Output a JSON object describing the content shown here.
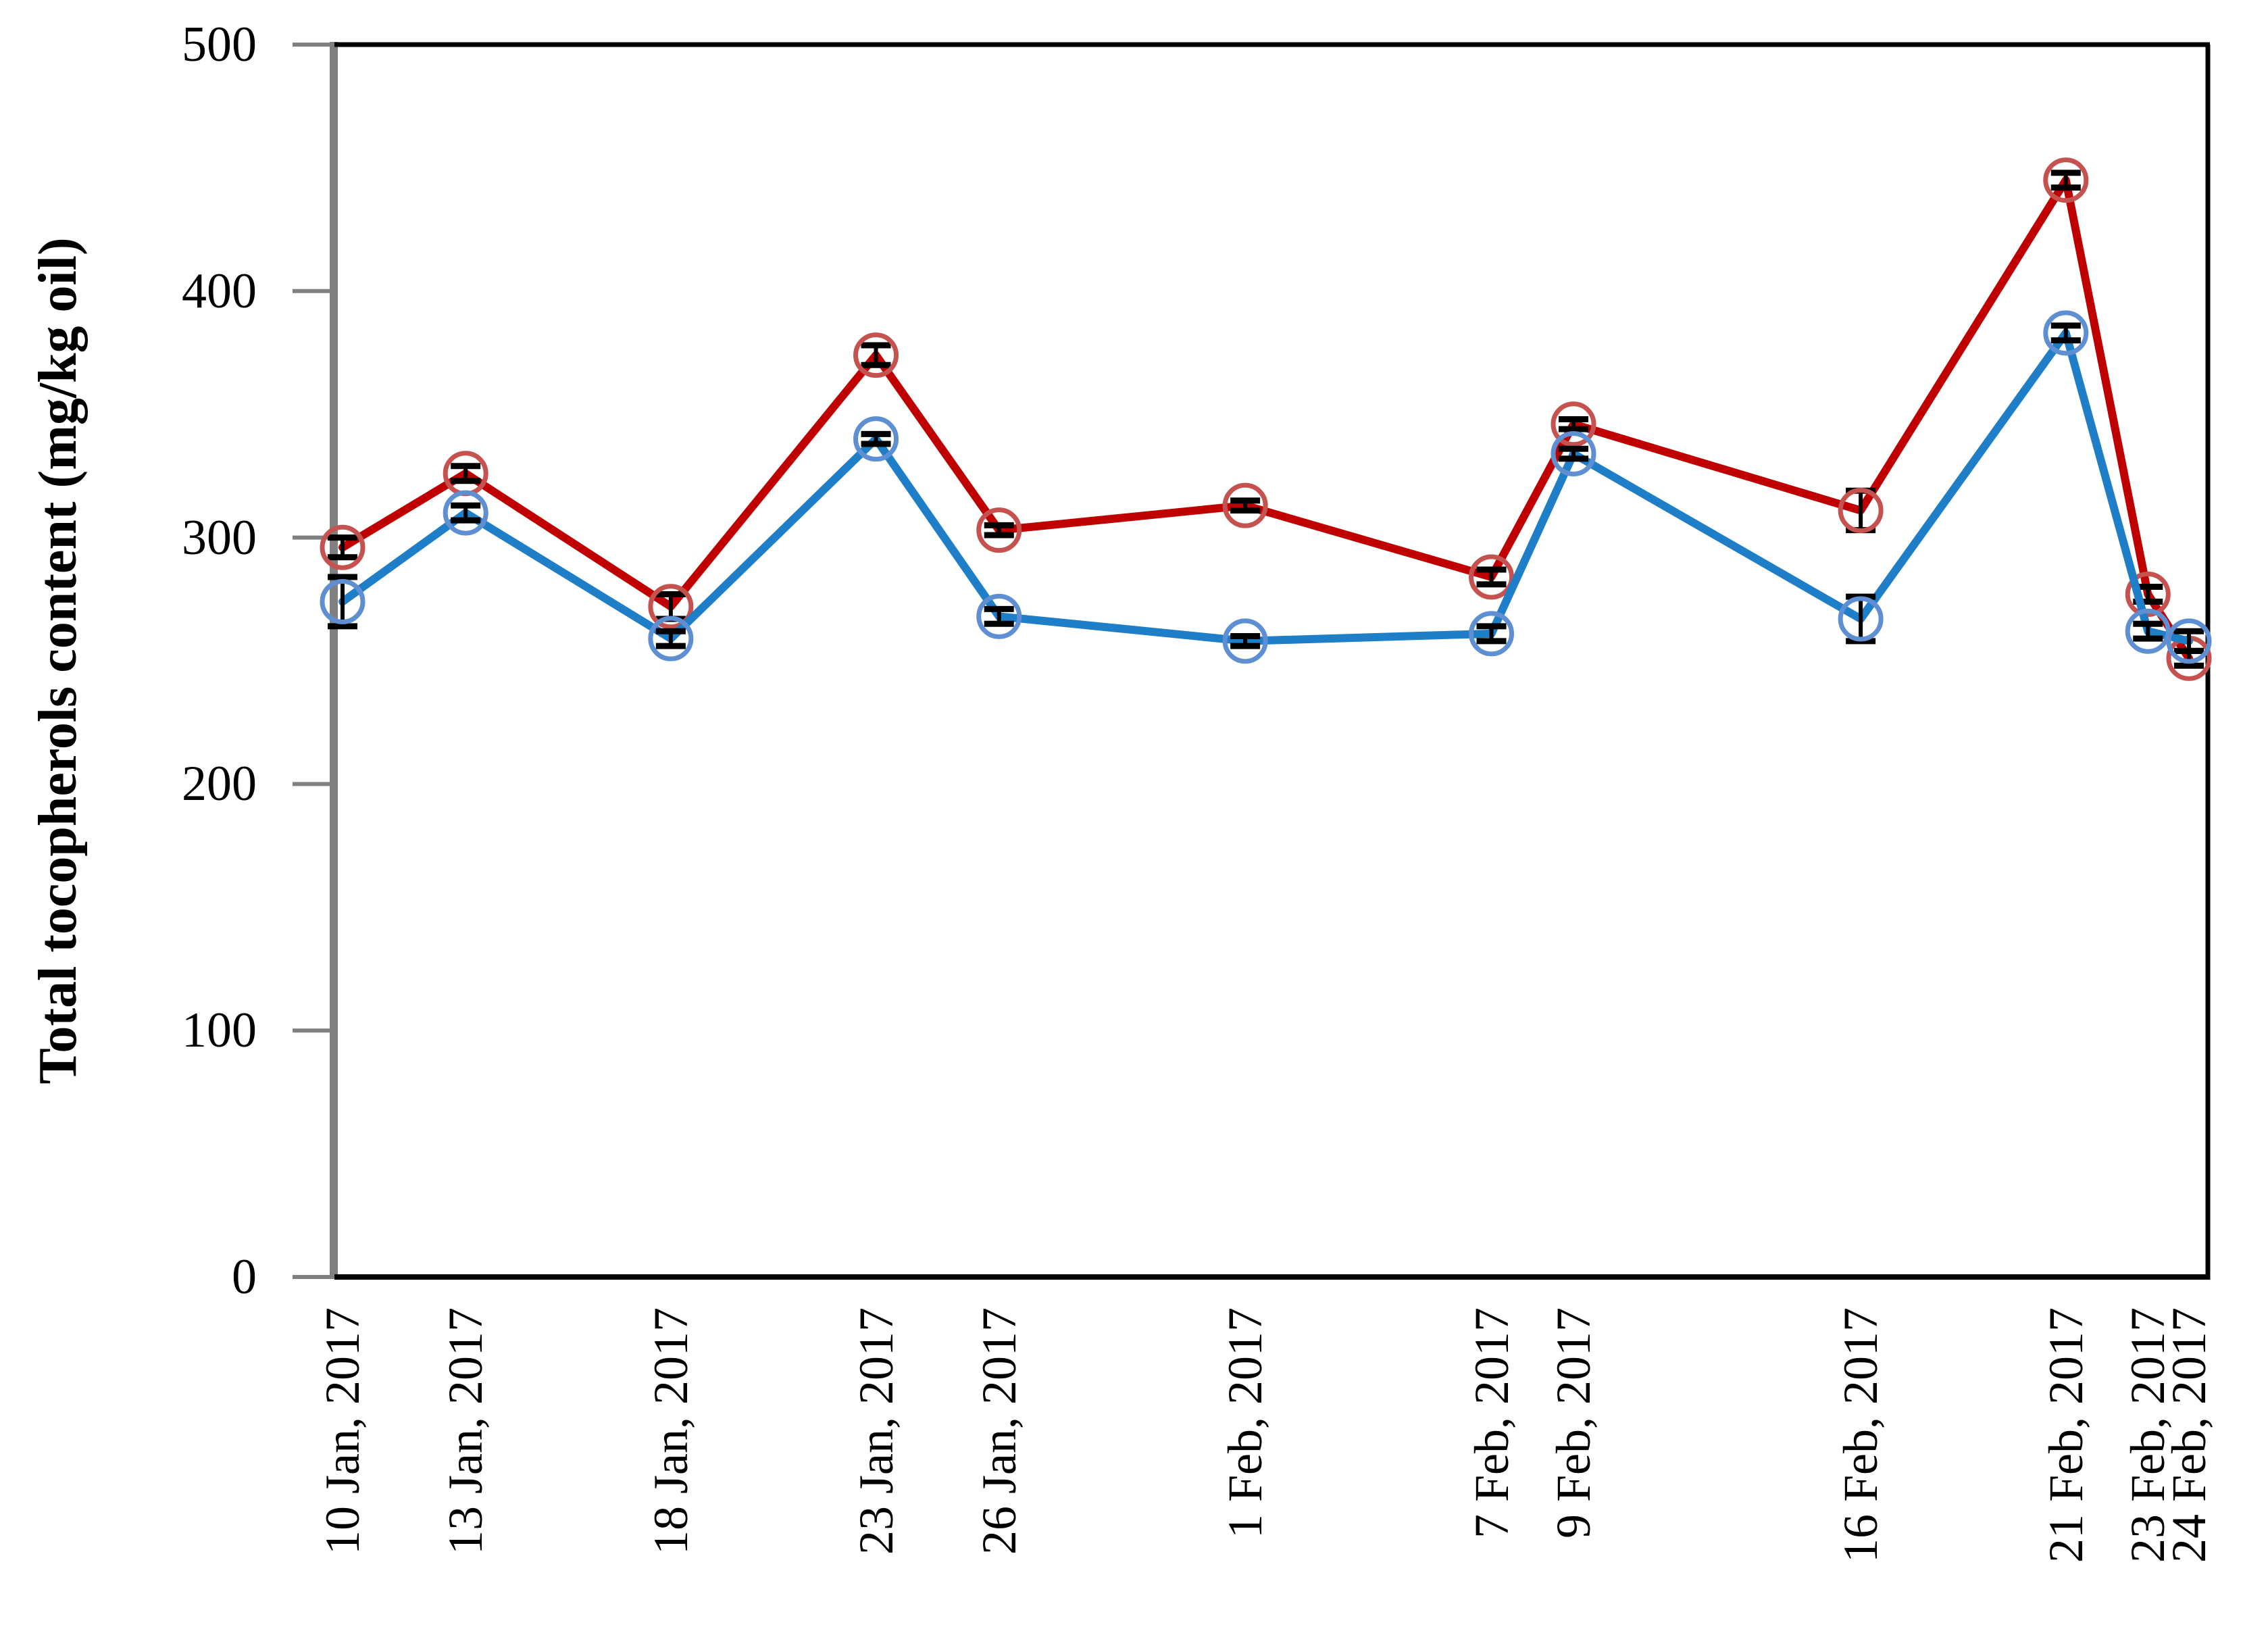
{
  "chart_data": {
    "type": "line",
    "title": "",
    "xlabel": "",
    "ylabel": "Total tocopherols content (mg/kg oil)",
    "ylim": [
      0,
      500
    ],
    "yticks": [
      0,
      100,
      200,
      300,
      400,
      500
    ],
    "grid": false,
    "legend_position": "none",
    "x_axis_type": "date",
    "categories": [
      "10 Jan, 2017",
      "13 Jan, 2017",
      "18 Jan, 2017",
      "23 Jan, 2017",
      "26 Jan, 2017",
      "1 Feb, 2017",
      "7 Feb, 2017",
      "9 Feb, 2017",
      "16 Feb, 2017",
      "21 Feb, 2017",
      "23 Feb, 2017",
      "24 Feb, 2017"
    ],
    "day_offsets": [
      0,
      3,
      8,
      13,
      16,
      22,
      28,
      30,
      37,
      42,
      44,
      45
    ],
    "marker_style": "open-circle",
    "error_bar_color": "#000000",
    "axis_line_color": "#808080",
    "border_color": "#000000",
    "series": [
      {
        "name": "red",
        "color": "#C00000",
        "marker_color": "#C5524E",
        "values": [
          296,
          326,
          272,
          374,
          303,
          313,
          284,
          346,
          311,
          445,
          277,
          251
        ],
        "errors": [
          4,
          3,
          5,
          4,
          2,
          2,
          3,
          2,
          8,
          3,
          3,
          3
        ]
      },
      {
        "name": "blue",
        "color": "#1F7EC8",
        "marker_color": "#5E8FD3",
        "values": [
          274,
          310,
          259,
          340,
          268,
          258,
          261,
          334,
          267,
          383,
          262,
          258
        ],
        "errors": [
          10,
          3,
          3,
          2,
          3,
          2,
          3,
          2,
          9,
          3,
          3,
          4
        ]
      }
    ]
  }
}
